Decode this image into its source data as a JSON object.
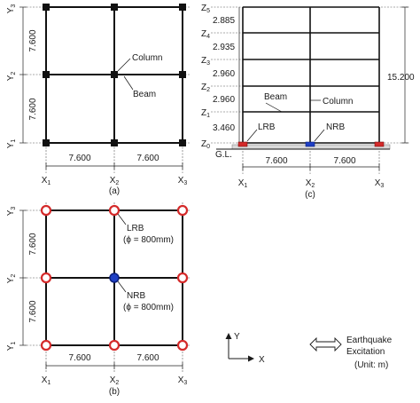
{
  "panel_a": {
    "caption": "(a)",
    "x_axis": [
      "X1",
      "X2",
      "X3"
    ],
    "y_axis": [
      "Y1",
      "Y2",
      "Y3"
    ],
    "x_spans": [
      "7.600",
      "7.600"
    ],
    "y_spans": [
      "7.600",
      "7.600"
    ],
    "callouts": {
      "column": "Column",
      "beam": "Beam"
    }
  },
  "panel_b": {
    "caption": "(b)",
    "x_axis": [
      "X1",
      "X2",
      "X3"
    ],
    "y_axis": [
      "Y1",
      "Y2",
      "Y3"
    ],
    "x_spans": [
      "7.600",
      "7.600"
    ],
    "y_spans": [
      "7.600",
      "7.600"
    ],
    "lrb": {
      "label": "LRB",
      "detail": "(ϕ = 800mm)",
      "color": "#d42a2a"
    },
    "nrb": {
      "label": "NRB",
      "detail": "(ϕ = 800mm)",
      "color": "#1f3fc4"
    }
  },
  "panel_c": {
    "caption": "(c)",
    "z_axis": [
      "Z0",
      "Z1",
      "Z2",
      "Z3",
      "Z4",
      "Z5"
    ],
    "storey_heights": [
      "3.460",
      "2.960",
      "2.960",
      "2.935",
      "2.885"
    ],
    "total_height": "15.200",
    "x_axis": [
      "X1",
      "X2",
      "X3"
    ],
    "x_spans": [
      "7.600",
      "7.600"
    ],
    "ground_label": "G.L.",
    "callouts": {
      "beam": "Beam",
      "column": "Column",
      "lrb": "LRB",
      "nrb": "NRB"
    }
  },
  "legend": {
    "axis_y": "Y",
    "axis_x": "X",
    "excitation_line1": "Earthquake",
    "excitation_line2": "Excitation",
    "unit": "(Unit: m)"
  }
}
